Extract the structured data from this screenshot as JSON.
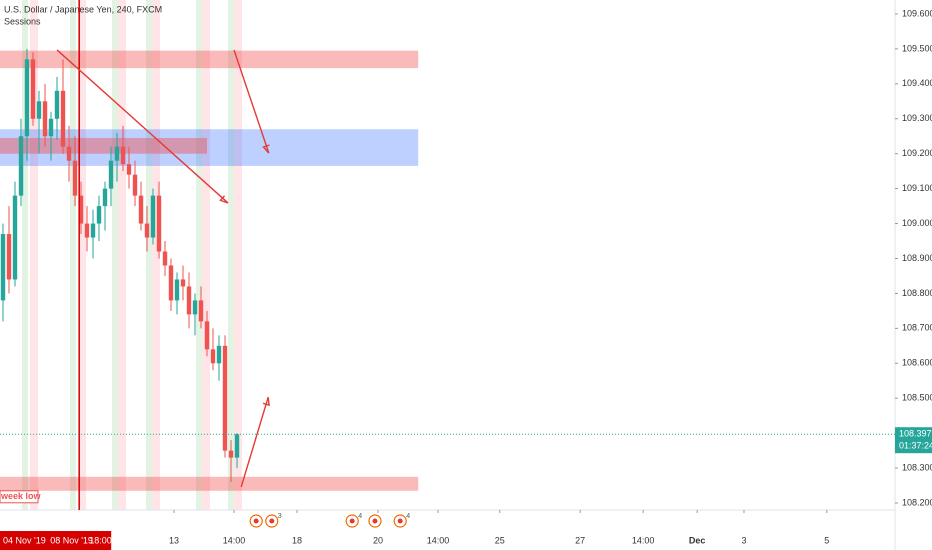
{
  "chart_data": {
    "type": "candlestick",
    "title": "U.S. Dollar / Japanese Yen, 240, FXCM",
    "legend": "Sessions",
    "up_color": "#26a69a",
    "down_color": "#ef5350",
    "open": [
      108.78,
      108.97,
      108.84,
      109.08,
      109.25,
      109.47,
      109.3,
      109.35,
      109.25,
      109.3,
      109.38,
      109.22,
      109.18,
      109.08,
      109.0,
      108.96,
      109.0,
      109.05,
      109.1,
      109.18,
      109.22,
      109.17,
      109.14,
      109.08,
      109.0,
      108.96,
      109.08,
      108.92,
      108.88,
      108.78,
      108.84,
      108.82,
      108.74,
      108.78,
      108.72,
      108.64,
      108.6,
      108.65,
      108.35,
      108.33
    ],
    "high": [
      109.0,
      109.05,
      109.12,
      109.3,
      109.5,
      109.49,
      109.38,
      109.4,
      109.32,
      109.42,
      109.47,
      109.28,
      109.25,
      109.12,
      109.05,
      109.04,
      109.08,
      109.12,
      109.22,
      109.26,
      109.28,
      109.22,
      109.18,
      109.12,
      109.05,
      109.1,
      109.12,
      108.95,
      108.9,
      108.86,
      108.88,
      108.86,
      108.8,
      108.82,
      108.75,
      108.7,
      108.68,
      108.68,
      108.38,
      108.4
    ],
    "low": [
      108.72,
      108.8,
      108.82,
      109.05,
      109.18,
      109.28,
      109.2,
      109.22,
      109.18,
      109.24,
      109.2,
      109.12,
      109.05,
      108.97,
      108.92,
      108.9,
      108.95,
      108.98,
      109.05,
      109.12,
      109.15,
      109.1,
      109.05,
      108.98,
      108.92,
      108.94,
      108.9,
      108.85,
      108.75,
      108.74,
      108.78,
      108.7,
      108.68,
      108.7,
      108.62,
      108.58,
      108.55,
      108.33,
      108.26,
      108.3
    ],
    "close": [
      108.97,
      108.84,
      109.08,
      109.25,
      109.47,
      109.3,
      109.35,
      109.25,
      109.3,
      109.38,
      109.22,
      109.18,
      109.08,
      109.0,
      108.96,
      109.0,
      109.05,
      109.1,
      109.18,
      109.22,
      109.17,
      109.14,
      109.08,
      109.0,
      108.96,
      109.08,
      108.92,
      108.88,
      108.78,
      108.84,
      108.82,
      108.74,
      108.78,
      108.72,
      108.64,
      108.6,
      108.65,
      108.35,
      108.33,
      108.397
    ],
    "xlim": [
      -0.5,
      148.67
    ],
    "xticks": [
      {
        "value": 28.5,
        "label": "13"
      },
      {
        "value": 38.5,
        "label": "14:00"
      },
      {
        "value": 49,
        "label": "18"
      },
      {
        "value": 62.5,
        "label": "20"
      },
      {
        "value": 72.5,
        "label": "14:00"
      },
      {
        "value": 82.8,
        "label": "25"
      },
      {
        "value": 96.2,
        "label": "27"
      },
      {
        "value": 106.7,
        "label": "14:00"
      },
      {
        "value": 115.7,
        "label": "Dec"
      },
      {
        "value": 123.5,
        "label": "3"
      },
      {
        "value": 137.3,
        "label": "5"
      }
    ],
    "ylim": [
      108.18,
      109.64
    ],
    "yticks": [
      {
        "value": 109.6,
        "label": "109.600"
      },
      {
        "value": 109.5,
        "label": "109.500"
      },
      {
        "value": 109.4,
        "label": "109.400"
      },
      {
        "value": 109.3,
        "label": "109.300"
      },
      {
        "value": 109.2,
        "label": "109.200"
      },
      {
        "value": 109.1,
        "label": "109.100"
      },
      {
        "value": 109.0,
        "label": "109.000"
      },
      {
        "value": 108.9,
        "label": "108.900"
      },
      {
        "value": 108.8,
        "label": "108.800"
      },
      {
        "value": 108.7,
        "label": "108.700"
      },
      {
        "value": 108.6,
        "label": "108.600"
      },
      {
        "value": 108.5,
        "label": "108.500"
      },
      {
        "value": 108.3,
        "label": "108.300"
      },
      {
        "value": 108.2,
        "label": "108.200"
      }
    ],
    "last_price": 108.397,
    "countdown": "01:37:24",
    "last_color": "#26a69a",
    "crosshair": {
      "x": 12.7,
      "date_from": "04 Nov '19",
      "date": "08 Nov '19",
      "time": "18:00",
      "color": "#d50000"
    },
    "zones": [
      {
        "x": [
          -0.5,
          69.2
        ],
        "price": [
          109.445,
          109.495
        ],
        "color": "rgba(239,83,80,0.4)"
      },
      {
        "x": [
          -0.5,
          69.2
        ],
        "price": [
          109.165,
          109.27
        ],
        "color": "rgba(41,98,255,0.3)"
      },
      {
        "x": [
          -0.5,
          34
        ],
        "price": [
          109.2,
          109.245
        ],
        "color": "rgba(239,83,80,0.45)"
      },
      {
        "x": [
          -0.5,
          69.2
        ],
        "price": [
          108.235,
          108.275
        ],
        "color": "rgba(239,83,80,0.4)"
      }
    ],
    "arrows": [
      {
        "x": [
          9,
          37.5
        ],
        "price": [
          109.497,
          109.059
        ],
        "color": "#e53935"
      },
      {
        "x": [
          38.5,
          44.3
        ],
        "price": [
          109.497,
          109.202
        ],
        "color": "#e53935"
      },
      {
        "x": [
          39.7,
          44.2
        ],
        "price": [
          108.246,
          108.503
        ],
        "color": "#e53935"
      }
    ],
    "annotation": "week low",
    "events": [
      {
        "x": 42.2
      },
      {
        "x": 44.8,
        "count": 3
      },
      {
        "x": 58.2,
        "count": 4
      },
      {
        "x": 62
      },
      {
        "x": 66.2,
        "count": 4
      }
    ]
  }
}
